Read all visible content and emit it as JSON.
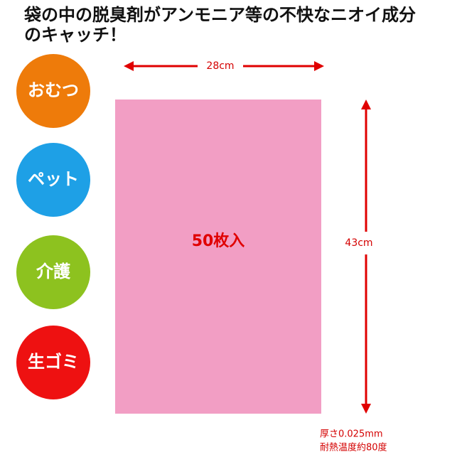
{
  "header": {
    "lines": [
      "袋の中の脱臭剤がアンモニア等の不快なニオイ成分",
      "のキャッチ！"
    ]
  },
  "uses": [
    "おむつ",
    "ペット",
    "介護",
    "生ゴミ"
  ],
  "bag": {
    "count_label": "50枚入",
    "width_label": "28cm",
    "height_label": "43cm"
  },
  "specs": [
    "厚さ0.025mm",
    "耐熱温度約80度"
  ]
}
